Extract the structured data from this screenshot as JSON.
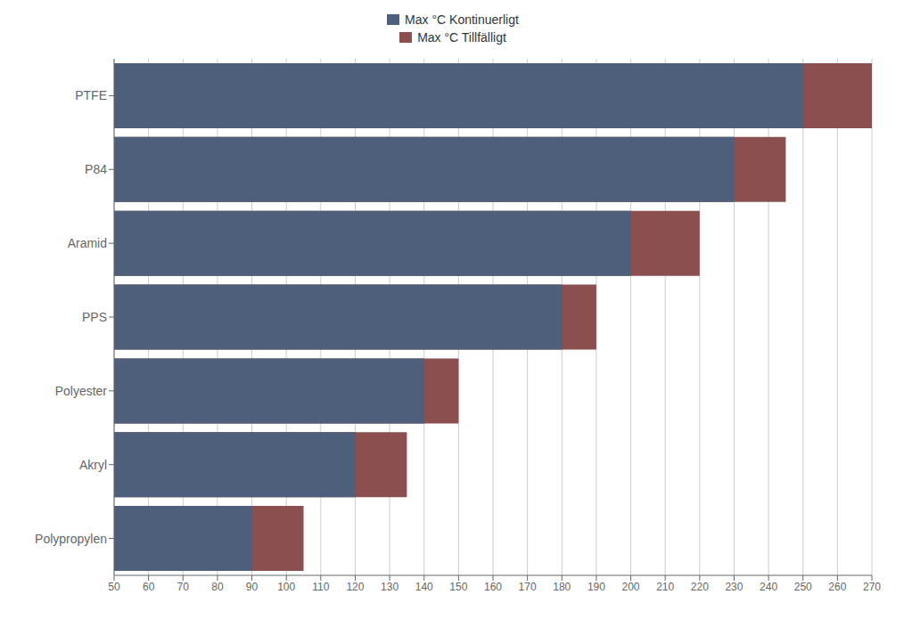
{
  "chart_data": {
    "type": "bar",
    "orientation": "horizontal",
    "categories": [
      "PTFE",
      "P84",
      "Aramid",
      "PPS",
      "Polyester",
      "Akryl",
      "Polypropylen"
    ],
    "series": [
      {
        "name": "Max °C Kontinuerligt",
        "color": "#4D5F7A",
        "values": [
          250,
          230,
          200,
          180,
          140,
          120,
          90
        ]
      },
      {
        "name": "Max °C Tillfälligt",
        "color": "#8B4F4F",
        "values": [
          270,
          245,
          220,
          190,
          150,
          135,
          105
        ]
      }
    ],
    "xlim": [
      50,
      270
    ],
    "xticks": [
      50,
      60,
      70,
      80,
      90,
      100,
      110,
      120,
      130,
      140,
      150,
      160,
      170,
      180,
      190,
      200,
      210,
      220,
      230,
      240,
      250,
      260,
      270
    ],
    "grid": true,
    "legend": "top"
  }
}
